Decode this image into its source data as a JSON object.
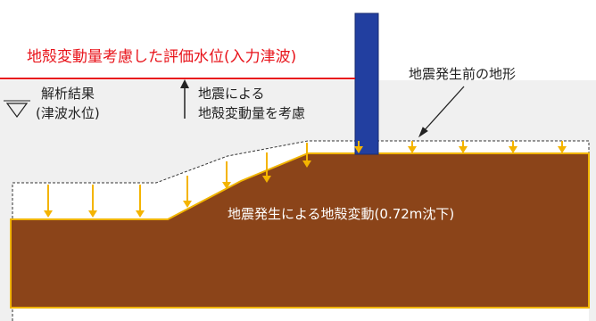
{
  "labels": {
    "evaluation_water_level": "地殻変動量考慮した評価水位(入力津波)",
    "analysis_result_line1": "解析結果",
    "analysis_result_line2": "(津波水位)",
    "consider_line1": "地震による",
    "consider_line2": "地殻変動量を考慮",
    "pre_quake_terrain": "地震発生前の地形",
    "crustal_movement": "地震発生による地殻変動(0.72m沈下)"
  },
  "colors": {
    "evaluation_line": "#e8141b",
    "ground_fill": "#8b4419",
    "ground_edge": "#f0b400",
    "arrow": "#f4b400",
    "pillar": "#223fa0",
    "water_area": "#f0f0f0",
    "dashed_terrain": "#333333"
  }
}
